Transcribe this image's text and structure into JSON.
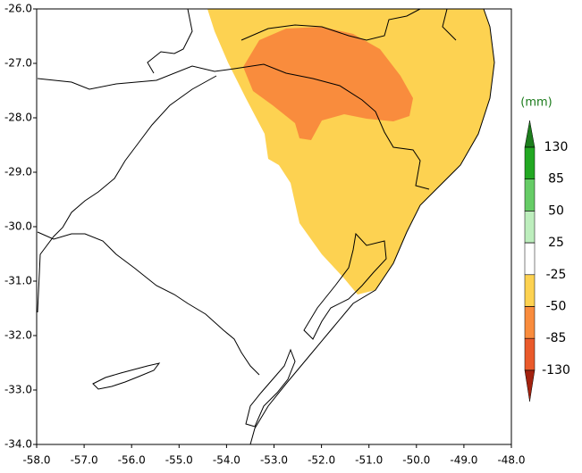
{
  "map": {
    "xticks": [
      {
        "value": -58,
        "label": "-58.0"
      },
      {
        "value": -57,
        "label": "-57.0"
      },
      {
        "value": -56,
        "label": "-56.0"
      },
      {
        "value": -55,
        "label": "-55.0"
      },
      {
        "value": -54,
        "label": "-54.0"
      },
      {
        "value": -53,
        "label": "-53.0"
      },
      {
        "value": -52,
        "label": "-52.0"
      },
      {
        "value": -51,
        "label": "-51.0"
      },
      {
        "value": -50,
        "label": "-50.0"
      },
      {
        "value": -49,
        "label": "-49.0"
      },
      {
        "value": -48,
        "label": "-48.0"
      }
    ],
    "yticks": [
      {
        "value": -26,
        "label": "-26.0"
      },
      {
        "value": -27,
        "label": "-27.0"
      },
      {
        "value": -28,
        "label": "-28.0"
      },
      {
        "value": -29,
        "label": "-29.0"
      },
      {
        "value": -30,
        "label": "-30.0"
      },
      {
        "value": -31,
        "label": "-31.0"
      },
      {
        "value": -32,
        "label": "-32.0"
      },
      {
        "value": -33,
        "label": "-33.0"
      },
      {
        "value": -34,
        "label": "-34.0"
      }
    ],
    "xlim": [
      -58,
      -48
    ],
    "ylim": [
      -34,
      -26
    ],
    "colorbar": {
      "unit": "(mm)",
      "ticks": [
        130,
        85,
        50,
        25,
        -25,
        -50,
        -85,
        -130
      ],
      "colors": [
        "#1c7d1c",
        "#22a822",
        "#66cc66",
        "#bdeebd",
        "#ffffff",
        "#fdd251",
        "#f98c3d",
        "#ea5a2b",
        "#a3220f"
      ]
    }
  }
}
